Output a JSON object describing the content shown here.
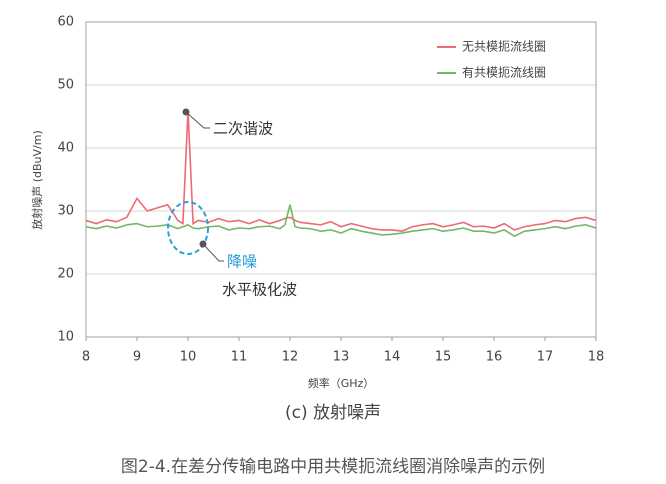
{
  "chart_data": {
    "type": "line",
    "x_label": "频率（GHz）",
    "y_label": "放射噪声 (dBuV/m)",
    "subtitle": "(c) 放射噪声",
    "caption": "图2-4.在差分传输电路中用共模扼流线圈消除噪声的示例",
    "annotations": [
      "二次谐波",
      "降噪",
      "水平极化波"
    ],
    "xlim": [
      8,
      18
    ],
    "xticks": [
      8,
      9,
      10,
      11,
      12,
      13,
      14,
      15,
      16,
      17,
      18
    ],
    "ylim": [
      10,
      60
    ],
    "yticks": [
      10,
      20,
      30,
      40,
      50,
      60
    ],
    "grid": true,
    "legend": "upper right",
    "x": [
      8,
      8.2,
      8.4,
      8.6,
      8.8,
      9,
      9.2,
      9.4,
      9.6,
      9.8,
      9.9,
      10,
      10.1,
      10.2,
      10.4,
      10.6,
      10.8,
      11,
      11.2,
      11.4,
      11.6,
      11.8,
      11.9,
      12,
      12.1,
      12.2,
      12.4,
      12.6,
      12.8,
      13,
      13.2,
      13.4,
      13.6,
      13.8,
      14,
      14.2,
      14.4,
      14.6,
      14.8,
      15,
      15.2,
      15.4,
      15.6,
      15.8,
      16,
      16.2,
      16.4,
      16.6,
      16.8,
      17,
      17.2,
      17.4,
      17.6,
      17.8,
      18
    ],
    "series": [
      {
        "name": "无共模扼流线圈",
        "color": "#ec6a74",
        "values": [
          28.5,
          28,
          28.6,
          28.3,
          29,
          32,
          30,
          30.5,
          31,
          28.5,
          28,
          46,
          28,
          28.5,
          28.2,
          28.8,
          28.3,
          28.5,
          28,
          28.6,
          28,
          28.5,
          28.8,
          29,
          28.5,
          28.2,
          28,
          27.8,
          28.3,
          27.5,
          28,
          27.6,
          27.2,
          27,
          27,
          26.8,
          27.5,
          27.8,
          28,
          27.5,
          27.8,
          28.2,
          27.5,
          27.6,
          27.3,
          28,
          27,
          27.5,
          27.8,
          28,
          28.5,
          28.3,
          28.8,
          29,
          28.5
        ]
      },
      {
        "name": "有共模扼流线圈",
        "color": "#72b866",
        "values": [
          27.5,
          27.2,
          27.6,
          27.3,
          27.8,
          28,
          27.5,
          27.6,
          27.8,
          27.2,
          27.5,
          27.8,
          27.3,
          27.2,
          27.5,
          27.6,
          27,
          27.3,
          27.2,
          27.5,
          27.6,
          27.2,
          27.8,
          31,
          27.5,
          27.3,
          27.2,
          26.8,
          27,
          26.5,
          27.2,
          26.8,
          26.5,
          26.2,
          26.3,
          26.5,
          26.8,
          27,
          27.2,
          26.8,
          27,
          27.3,
          26.8,
          26.8,
          26.5,
          27,
          26,
          26.8,
          27,
          27.2,
          27.5,
          27.2,
          27.6,
          27.8,
          27.3
        ]
      }
    ]
  }
}
